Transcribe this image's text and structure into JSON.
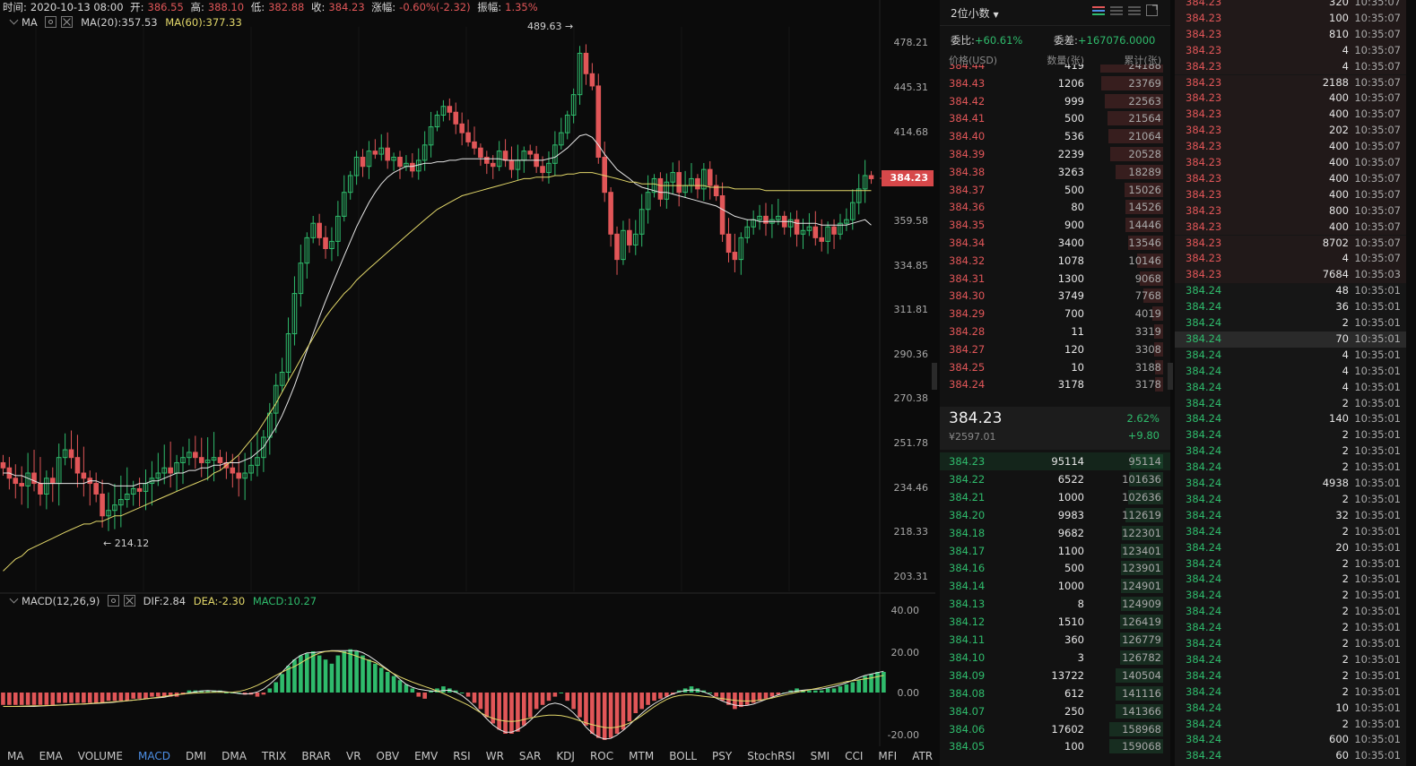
{
  "info": {
    "time_label": "时间:",
    "time_value": "2020-10-13 08:00",
    "open_label": "开:",
    "open_value": "386.55",
    "high_label": "高:",
    "high_value": "388.10",
    "low_label": "低:",
    "low_value": "382.88",
    "close_label": "收:",
    "close_value": "384.23",
    "change_label": "涨幅:",
    "change_value": "-0.60%(-2.32)",
    "amp_label": "振幅:",
    "amp_value": "1.35%"
  },
  "ma_line": {
    "name": "MA",
    "ma20": "MA(20):357.53",
    "ma60": "MA(60):377.33"
  },
  "macd_line": {
    "name": "MACD(12,26,9)",
    "dif": "DIF:2.84",
    "dea": "DEA:-2.30",
    "macd": "MACD:10.27"
  },
  "price_axis": [
    "478.21",
    "445.31",
    "414.68",
    "384.23",
    "359.58",
    "334.85",
    "311.81",
    "290.36",
    "270.38",
    "251.78",
    "234.46",
    "218.33",
    "203.31"
  ],
  "macd_axis": [
    "40.00",
    "20.00",
    "0.00",
    "-20.00"
  ],
  "current_price_tag": "384.23",
  "annotations": {
    "high": "489.63",
    "low": "214.12"
  },
  "indicator_tabs": [
    "MA",
    "EMA",
    "VOLUME",
    "MACD",
    "DMI",
    "DMA",
    "TRIX",
    "BRAR",
    "VR",
    "OBV",
    "EMV",
    "RSI",
    "WR",
    "SAR",
    "KDJ",
    "ROC",
    "MTM",
    "BOLL",
    "PSY",
    "StochRSI",
    "SMI",
    "CCI",
    "MFI",
    "ATR",
    "BBW",
    "SKDJ",
    "BIAS"
  ],
  "active_tab": "MACD",
  "colors": {
    "up": "#2fbb6c",
    "down": "#e15658",
    "ma20": "#e6e6e6",
    "ma60": "#e3d86a",
    "accent": "#4d8fe6"
  },
  "chart_data": {
    "type": "candlestick",
    "y_ticks": [
      478.21,
      445.31,
      414.68,
      384.23,
      359.58,
      334.85,
      311.81,
      290.36,
      270.38,
      251.78,
      234.46,
      218.33,
      203.31
    ],
    "closes": [
      242,
      238,
      236,
      235,
      240,
      236,
      232,
      238,
      236,
      246,
      249,
      246,
      240,
      238,
      236,
      232,
      224,
      226,
      228,
      230,
      232,
      234,
      233,
      236,
      238,
      240,
      242,
      240,
      244,
      246,
      248,
      246,
      244,
      245,
      246,
      244,
      242,
      240,
      238,
      240,
      243,
      246,
      254,
      264,
      276,
      282,
      300,
      320,
      336,
      350,
      358,
      350,
      344,
      348,
      362,
      376,
      386,
      398,
      392,
      402,
      400,
      404,
      396,
      398,
      392,
      394,
      389,
      396,
      406,
      418,
      426,
      432,
      428,
      420,
      414,
      408,
      404,
      398,
      394,
      392,
      402,
      396,
      390,
      396,
      402,
      400,
      392,
      388,
      394,
      406,
      414,
      426,
      440,
      470,
      455,
      446,
      398,
      376,
      352,
      338,
      354,
      346,
      352,
      366,
      376,
      384,
      372,
      382,
      388,
      376,
      380,
      384,
      378,
      390,
      380,
      374,
      352,
      342,
      338,
      350,
      356,
      360,
      362,
      358,
      360,
      362,
      356,
      360,
      352,
      354,
      356,
      350,
      348,
      356,
      352,
      358,
      360,
      370,
      378,
      386,
      384
    ],
    "ma20": [
      240,
      240,
      239,
      239,
      238,
      237,
      236,
      236,
      236,
      236,
      236,
      236,
      236,
      236,
      237,
      237,
      236,
      236,
      235,
      235,
      235,
      235,
      236,
      236,
      237,
      237,
      238,
      239,
      240,
      240,
      241,
      241,
      242,
      242,
      243,
      243,
      244,
      244,
      244,
      245,
      246,
      248,
      250,
      254,
      258,
      263,
      269,
      276,
      284,
      292,
      300,
      308,
      316,
      324,
      332,
      340,
      348,
      356,
      363,
      370,
      376,
      381,
      385,
      388,
      390,
      392,
      392,
      393,
      394,
      394,
      395,
      395,
      396,
      396,
      397,
      397,
      397,
      397,
      397,
      397,
      397,
      396,
      396,
      396,
      396,
      396,
      396,
      396,
      397,
      398,
      401,
      404,
      408,
      412,
      413,
      411,
      406,
      400,
      395,
      390,
      387,
      384,
      381,
      379,
      378,
      377,
      376,
      376,
      375,
      374,
      373,
      372,
      371,
      370,
      369,
      368,
      366,
      364,
      362,
      361,
      360,
      360,
      359,
      359,
      359,
      359,
      359,
      359,
      358,
      358,
      358,
      358,
      357,
      357,
      357,
      357,
      357,
      358,
      359,
      360,
      357
    ],
    "ma60": [
      205,
      207,
      209,
      210,
      212,
      213,
      214,
      215,
      216,
      217,
      218,
      219,
      220,
      221,
      221,
      222,
      222,
      223,
      224,
      224,
      225,
      226,
      227,
      228,
      229,
      230,
      231,
      232,
      233,
      234,
      235,
      236,
      237,
      238,
      240,
      241,
      243,
      245,
      247,
      250,
      253,
      256,
      260,
      264,
      268,
      273,
      278,
      283,
      288,
      293,
      298,
      303,
      308,
      312,
      316,
      320,
      323,
      327,
      330,
      333,
      336,
      339,
      342,
      345,
      348,
      351,
      354,
      357,
      360,
      363,
      366,
      368,
      370,
      372,
      374,
      375,
      376,
      377,
      378,
      379,
      380,
      381,
      382,
      383,
      384,
      384,
      385,
      385,
      385,
      386,
      386,
      387,
      387,
      388,
      388,
      388,
      387,
      386,
      385,
      384,
      383,
      382,
      382,
      381,
      381,
      381,
      380,
      380,
      380,
      380,
      380,
      380,
      380,
      380,
      379,
      379,
      379,
      379,
      378,
      378,
      378,
      378,
      378,
      377,
      377,
      377,
      377,
      377,
      377,
      377,
      377,
      377,
      377,
      377,
      377,
      377,
      377,
      377,
      377,
      377,
      377
    ],
    "macd_hist": [
      -6,
      -6,
      -6,
      -6,
      -6,
      -6,
      -6,
      -6,
      -6,
      -5,
      -5,
      -5,
      -5,
      -5,
      -5,
      -5,
      -5,
      -4,
      -4,
      -4,
      -4,
      -3,
      -3,
      -3,
      -2,
      -2,
      -2,
      -2,
      -2,
      -1,
      1,
      1,
      1,
      1,
      1,
      1,
      0,
      0,
      0,
      -1,
      -1,
      -2,
      -1,
      2,
      5,
      9,
      13,
      16,
      18,
      19,
      20,
      18,
      16,
      14,
      18,
      20,
      21,
      20,
      18,
      16,
      14,
      12,
      10,
      8,
      6,
      4,
      2,
      -2,
      -3,
      1,
      2,
      3,
      2,
      1,
      0,
      -2,
      -5,
      -8,
      -12,
      -15,
      -18,
      -20,
      -20,
      -19,
      -16,
      -12,
      -8,
      -6,
      -4,
      -2,
      0,
      -4,
      -8,
      -12,
      -16,
      -20,
      -22,
      -23,
      -22,
      -20,
      -18,
      -14,
      -10,
      -8,
      -6,
      -4,
      -3,
      -2,
      -1,
      1,
      2,
      3,
      2,
      1,
      0,
      -2,
      -4,
      -6,
      -8,
      -7,
      -6,
      -5,
      -4,
      -3,
      -2,
      -1,
      0,
      1,
      2,
      1,
      1,
      1,
      1,
      2,
      2,
      3,
      4,
      5,
      6,
      8,
      9,
      10,
      10
    ]
  },
  "book": {
    "decimals_label": "2位小数",
    "ratio_label": "委比:",
    "ratio_value": "+60.61%",
    "diff_label": "委差:",
    "diff_value": "+167076.0000",
    "col_price": "价格(USD)",
    "col_qty": "数量(张)",
    "col_cum": "累计(张)",
    "asks": [
      [
        "384.44",
        "419",
        "24188"
      ],
      [
        "384.43",
        "1206",
        "23769"
      ],
      [
        "384.42",
        "999",
        "22563"
      ],
      [
        "384.41",
        "500",
        "21564"
      ],
      [
        "384.40",
        "536",
        "21064"
      ],
      [
        "384.39",
        "2239",
        "20528"
      ],
      [
        "384.38",
        "3263",
        "18289"
      ],
      [
        "384.37",
        "500",
        "15026"
      ],
      [
        "384.36",
        "80",
        "14526"
      ],
      [
        "384.35",
        "900",
        "14446"
      ],
      [
        "384.34",
        "3400",
        "13546"
      ],
      [
        "384.32",
        "1078",
        "10146"
      ],
      [
        "384.31",
        "1300",
        "9068"
      ],
      [
        "384.30",
        "3749",
        "7768"
      ],
      [
        "384.29",
        "700",
        "4019"
      ],
      [
        "384.28",
        "11",
        "3319"
      ],
      [
        "384.27",
        "120",
        "3308"
      ],
      [
        "384.25",
        "10",
        "3188"
      ],
      [
        "384.24",
        "3178",
        "3178"
      ]
    ],
    "last_price": "384.23",
    "last_cny": "¥2597.01",
    "last_pct": "2.62%",
    "last_chg": "+9.80",
    "bids": [
      [
        "384.23",
        "95114",
        "95114"
      ],
      [
        "384.22",
        "6522",
        "101636"
      ],
      [
        "384.21",
        "1000",
        "102636"
      ],
      [
        "384.20",
        "9983",
        "112619"
      ],
      [
        "384.18",
        "9682",
        "122301"
      ],
      [
        "384.17",
        "1100",
        "123401"
      ],
      [
        "384.16",
        "500",
        "123901"
      ],
      [
        "384.14",
        "1000",
        "124901"
      ],
      [
        "384.13",
        "8",
        "124909"
      ],
      [
        "384.12",
        "1510",
        "126419"
      ],
      [
        "384.11",
        "360",
        "126779"
      ],
      [
        "384.10",
        "3",
        "126782"
      ],
      [
        "384.09",
        "13722",
        "140504"
      ],
      [
        "384.08",
        "612",
        "141116"
      ],
      [
        "384.07",
        "250",
        "141366"
      ],
      [
        "384.06",
        "17602",
        "158968"
      ],
      [
        "384.05",
        "100",
        "159068"
      ]
    ]
  },
  "trades": [
    [
      "384.23",
      "320",
      "10:35:07",
      "s"
    ],
    [
      "384.23",
      "100",
      "10:35:07",
      "s"
    ],
    [
      "384.23",
      "810",
      "10:35:07",
      "s"
    ],
    [
      "384.23",
      "4",
      "10:35:07",
      "s"
    ],
    [
      "384.23",
      "4",
      "10:35:07",
      "s"
    ],
    [
      "384.23",
      "2188",
      "10:35:07",
      "s"
    ],
    [
      "384.23",
      "400",
      "10:35:07",
      "s"
    ],
    [
      "384.23",
      "400",
      "10:35:07",
      "s"
    ],
    [
      "384.23",
      "202",
      "10:35:07",
      "s"
    ],
    [
      "384.23",
      "400",
      "10:35:07",
      "s"
    ],
    [
      "384.23",
      "400",
      "10:35:07",
      "s"
    ],
    [
      "384.23",
      "400",
      "10:35:07",
      "s"
    ],
    [
      "384.23",
      "400",
      "10:35:07",
      "s"
    ],
    [
      "384.23",
      "800",
      "10:35:07",
      "s"
    ],
    [
      "384.23",
      "400",
      "10:35:07",
      "s"
    ],
    [
      "384.23",
      "8702",
      "10:35:07",
      "s"
    ],
    [
      "384.23",
      "4",
      "10:35:07",
      "s"
    ],
    [
      "384.23",
      "7684",
      "10:35:03",
      "s"
    ],
    [
      "384.24",
      "48",
      "10:35:01",
      "b"
    ],
    [
      "384.24",
      "36",
      "10:35:01",
      "b"
    ],
    [
      "384.24",
      "2",
      "10:35:01",
      "b"
    ],
    [
      "384.24",
      "70",
      "10:35:01",
      "b"
    ],
    [
      "384.24",
      "4",
      "10:35:01",
      "b"
    ],
    [
      "384.24",
      "4",
      "10:35:01",
      "b"
    ],
    [
      "384.24",
      "4",
      "10:35:01",
      "b"
    ],
    [
      "384.24",
      "2",
      "10:35:01",
      "b"
    ],
    [
      "384.24",
      "140",
      "10:35:01",
      "b"
    ],
    [
      "384.24",
      "2",
      "10:35:01",
      "b"
    ],
    [
      "384.24",
      "2",
      "10:35:01",
      "b"
    ],
    [
      "384.24",
      "2",
      "10:35:01",
      "b"
    ],
    [
      "384.24",
      "4938",
      "10:35:01",
      "b"
    ],
    [
      "384.24",
      "2",
      "10:35:01",
      "b"
    ],
    [
      "384.24",
      "32",
      "10:35:01",
      "b"
    ],
    [
      "384.24",
      "2",
      "10:35:01",
      "b"
    ],
    [
      "384.24",
      "20",
      "10:35:01",
      "b"
    ],
    [
      "384.24",
      "2",
      "10:35:01",
      "b"
    ],
    [
      "384.24",
      "2",
      "10:35:01",
      "b"
    ],
    [
      "384.24",
      "2",
      "10:35:01",
      "b"
    ],
    [
      "384.24",
      "2",
      "10:35:01",
      "b"
    ],
    [
      "384.24",
      "2",
      "10:35:01",
      "b"
    ],
    [
      "384.24",
      "2",
      "10:35:01",
      "b"
    ],
    [
      "384.24",
      "2",
      "10:35:01",
      "b"
    ],
    [
      "384.24",
      "2",
      "10:35:01",
      "b"
    ],
    [
      "384.24",
      "2",
      "10:35:01",
      "b"
    ],
    [
      "384.24",
      "10",
      "10:35:01",
      "b"
    ],
    [
      "384.24",
      "2",
      "10:35:01",
      "b"
    ],
    [
      "384.24",
      "600",
      "10:35:01",
      "b"
    ],
    [
      "384.24",
      "60",
      "10:35:01",
      "b"
    ]
  ]
}
